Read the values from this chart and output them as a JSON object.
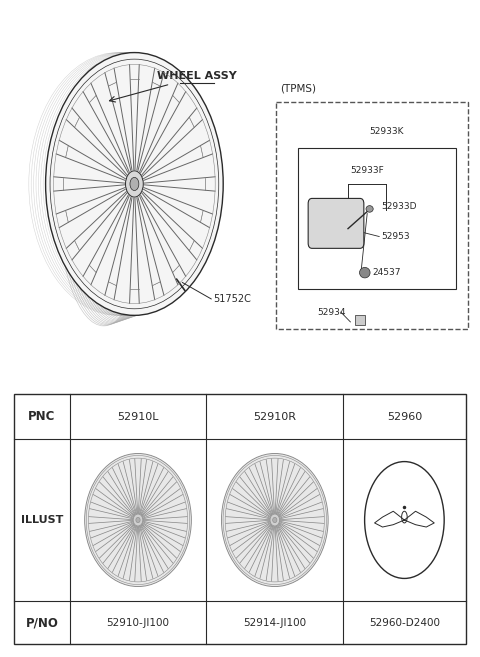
{
  "bg_color": "#ffffff",
  "line_color": "#2a2a2a",
  "wheel_assy_label": "WHEEL ASSY",
  "part_51752C": "51752C",
  "tpms_label": "(TPMS)",
  "tpms_parts_labels": [
    "52933K",
    "52933F",
    "52933D",
    "52953",
    "24537",
    "52934"
  ],
  "table_pnc": [
    "52910L",
    "52910R",
    "52960"
  ],
  "table_pno": [
    "52910-JI100",
    "52914-JI100",
    "52960-D2400"
  ],
  "table_label_pnc": "PNC",
  "table_label_illust": "ILLUST",
  "table_label_pno": "P/NO",
  "fig_w": 4.8,
  "fig_h": 6.57,
  "dpi": 100
}
